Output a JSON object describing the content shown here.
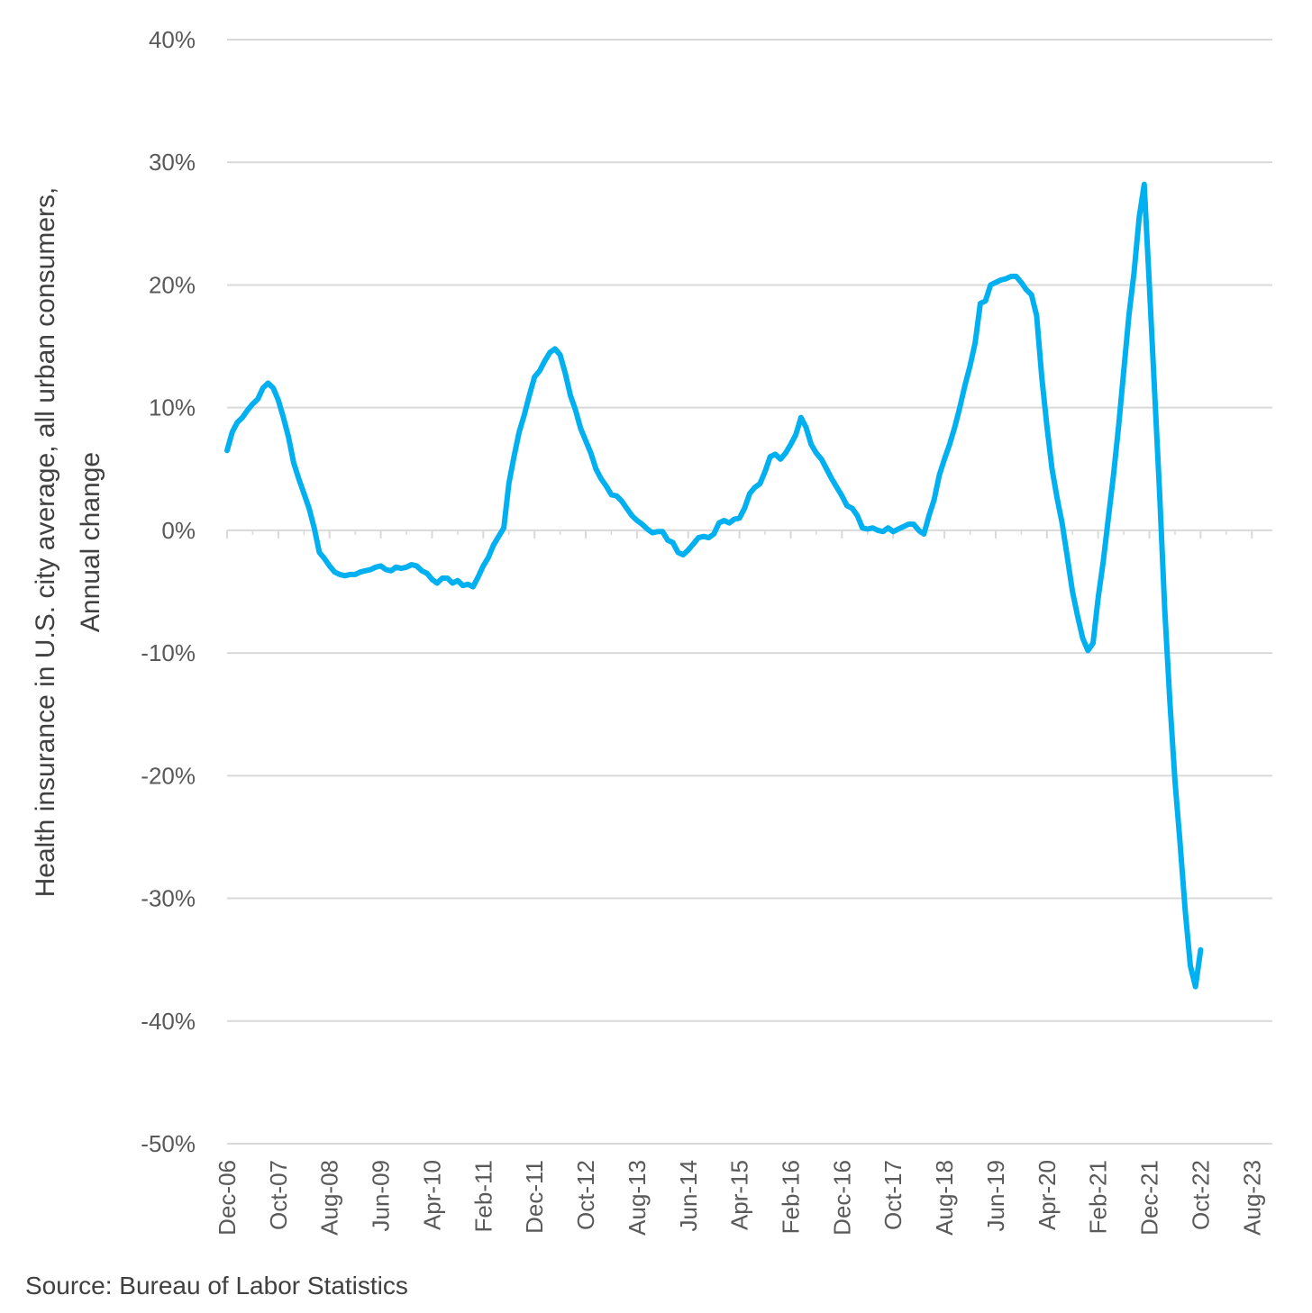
{
  "chart_data": {
    "type": "line",
    "title": "",
    "ylabel_lines": [
      "Health insurance in U.S. city average, all urban consumers,",
      "Annual change"
    ],
    "xlabel": "",
    "source": "Source: Bureau of Labor Statistics",
    "ylim": [
      -50,
      40
    ],
    "yticks": [
      40,
      30,
      20,
      10,
      0,
      -10,
      -20,
      -30,
      -40,
      -50
    ],
    "ytick_labels": [
      "40%",
      "30%",
      "20%",
      "10%",
      "0%",
      "-10%",
      "-20%",
      "-30%",
      "-40%",
      "-50%"
    ],
    "xtick_labels": [
      "Dec-06",
      "Oct-07",
      "Aug-08",
      "Jun-09",
      "Apr-10",
      "Feb-11",
      "Dec-11",
      "Oct-12",
      "Aug-13",
      "Jun-14",
      "Apr-15",
      "Feb-16",
      "Dec-16",
      "Oct-17",
      "Aug-18",
      "Jun-19",
      "Apr-20",
      "Feb-21",
      "Dec-21",
      "Oct-22",
      "Aug-23"
    ],
    "x_range_months": [
      0,
      204
    ],
    "grid": true,
    "series": [
      {
        "name": "Health insurance annual change",
        "color": "#00B0F0",
        "points": [
          [
            0,
            6.5
          ],
          [
            1,
            8.0
          ],
          [
            2,
            8.8
          ],
          [
            3,
            9.2
          ],
          [
            4,
            9.8
          ],
          [
            5,
            10.3
          ],
          [
            6,
            10.7
          ],
          [
            7,
            11.6
          ],
          [
            8,
            12.0
          ],
          [
            9,
            11.6
          ],
          [
            10,
            10.6
          ],
          [
            11,
            9.2
          ],
          [
            12,
            7.6
          ],
          [
            13,
            5.5
          ],
          [
            14,
            4.2
          ],
          [
            15,
            3.0
          ],
          [
            16,
            1.8
          ],
          [
            17,
            0.2
          ],
          [
            18,
            -1.8
          ],
          [
            19,
            -2.3
          ],
          [
            20,
            -2.9
          ],
          [
            21,
            -3.4
          ],
          [
            22,
            -3.6
          ],
          [
            23,
            -3.7
          ],
          [
            24,
            -3.6
          ],
          [
            25,
            -3.6
          ],
          [
            26,
            -3.4
          ],
          [
            27,
            -3.3
          ],
          [
            28,
            -3.2
          ],
          [
            29,
            -3.0
          ],
          [
            30,
            -2.9
          ],
          [
            31,
            -3.2
          ],
          [
            32,
            -3.3
          ],
          [
            33,
            -3.0
          ],
          [
            34,
            -3.1
          ],
          [
            35,
            -3.0
          ],
          [
            36,
            -2.8
          ],
          [
            37,
            -2.9
          ],
          [
            38,
            -3.3
          ],
          [
            39,
            -3.5
          ],
          [
            40,
            -4.0
          ],
          [
            41,
            -4.3
          ],
          [
            42,
            -3.9
          ],
          [
            43,
            -3.9
          ],
          [
            44,
            -4.3
          ],
          [
            45,
            -4.1
          ],
          [
            46,
            -4.5
          ],
          [
            47,
            -4.4
          ],
          [
            48,
            -4.6
          ],
          [
            49,
            -3.8
          ],
          [
            50,
            -2.9
          ],
          [
            51,
            -2.2
          ],
          [
            52,
            -1.2
          ],
          [
            53,
            -0.5
          ],
          [
            54,
            0.2
          ],
          [
            55,
            3.8
          ],
          [
            56,
            6.0
          ],
          [
            57,
            8.0
          ],
          [
            58,
            9.4
          ],
          [
            59,
            11.0
          ],
          [
            60,
            12.5
          ],
          [
            61,
            13.0
          ],
          [
            62,
            13.8
          ],
          [
            63,
            14.5
          ],
          [
            64,
            14.8
          ],
          [
            65,
            14.3
          ],
          [
            66,
            12.8
          ],
          [
            67,
            11.0
          ],
          [
            68,
            9.8
          ],
          [
            69,
            8.3
          ],
          [
            70,
            7.3
          ],
          [
            71,
            6.3
          ],
          [
            72,
            5.0
          ],
          [
            73,
            4.2
          ],
          [
            74,
            3.6
          ],
          [
            75,
            2.9
          ],
          [
            76,
            2.8
          ],
          [
            77,
            2.4
          ],
          [
            78,
            1.8
          ],
          [
            79,
            1.2
          ],
          [
            80,
            0.8
          ],
          [
            81,
            0.5
          ],
          [
            82,
            0.1
          ],
          [
            83,
            -0.2
          ],
          [
            84,
            -0.1
          ],
          [
            85,
            -0.1
          ],
          [
            86,
            -0.8
          ],
          [
            87,
            -1.0
          ],
          [
            88,
            -1.8
          ],
          [
            89,
            -2.0
          ],
          [
            90,
            -1.6
          ],
          [
            91,
            -1.1
          ],
          [
            92,
            -0.6
          ],
          [
            93,
            -0.5
          ],
          [
            94,
            -0.6
          ],
          [
            95,
            -0.3
          ],
          [
            96,
            0.6
          ],
          [
            97,
            0.8
          ],
          [
            98,
            0.6
          ],
          [
            99,
            0.9
          ],
          [
            100,
            1.0
          ],
          [
            101,
            1.8
          ],
          [
            102,
            3.0
          ],
          [
            103,
            3.5
          ],
          [
            104,
            3.8
          ],
          [
            105,
            4.8
          ],
          [
            106,
            6.0
          ],
          [
            107,
            6.2
          ],
          [
            108,
            5.8
          ],
          [
            109,
            6.3
          ],
          [
            110,
            7.0
          ],
          [
            111,
            7.8
          ],
          [
            112,
            9.2
          ],
          [
            113,
            8.4
          ],
          [
            114,
            7.0
          ],
          [
            115,
            6.3
          ],
          [
            116,
            5.8
          ],
          [
            117,
            5.0
          ],
          [
            118,
            4.2
          ],
          [
            119,
            3.5
          ],
          [
            120,
            2.8
          ],
          [
            121,
            2.0
          ],
          [
            122,
            1.8
          ],
          [
            123,
            1.2
          ],
          [
            124,
            0.2
          ],
          [
            125,
            0.1
          ],
          [
            126,
            0.2
          ],
          [
            127,
            0.0
          ],
          [
            128,
            -0.1
          ],
          [
            129,
            0.2
          ],
          [
            130,
            -0.1
          ],
          [
            131,
            0.1
          ],
          [
            132,
            0.3
          ],
          [
            133,
            0.5
          ],
          [
            134,
            0.5
          ],
          [
            135,
            0.0
          ],
          [
            136,
            -0.3
          ],
          [
            137,
            1.2
          ],
          [
            138,
            2.5
          ],
          [
            139,
            4.5
          ],
          [
            140,
            5.8
          ],
          [
            141,
            7.0
          ],
          [
            142,
            8.4
          ],
          [
            143,
            10.0
          ],
          [
            144,
            11.8
          ],
          [
            145,
            13.4
          ],
          [
            146,
            15.3
          ],
          [
            147,
            18.5
          ],
          [
            148,
            18.7
          ],
          [
            149,
            20.0
          ],
          [
            150,
            20.2
          ],
          [
            151,
            20.4
          ],
          [
            152,
            20.5
          ],
          [
            153,
            20.7
          ],
          [
            154,
            20.7
          ],
          [
            155,
            20.2
          ],
          [
            156,
            19.6
          ],
          [
            157,
            19.2
          ],
          [
            158,
            17.5
          ],
          [
            159,
            12.5
          ],
          [
            160,
            8.5
          ],
          [
            161,
            5.0
          ],
          [
            162,
            2.6
          ],
          [
            163,
            0.5
          ],
          [
            164,
            -2.2
          ],
          [
            165,
            -5.0
          ],
          [
            166,
            -7.0
          ],
          [
            167,
            -8.8
          ],
          [
            168,
            -9.8
          ],
          [
            169,
            -9.2
          ],
          [
            170,
            -5.5
          ],
          [
            171,
            -2.5
          ],
          [
            172,
            1.0
          ],
          [
            173,
            4.5
          ],
          [
            174,
            8.5
          ],
          [
            175,
            13.0
          ],
          [
            176,
            17.5
          ],
          [
            177,
            21.0
          ],
          [
            178,
            25.5
          ],
          [
            179,
            28.2
          ],
          [
            180,
            20.0
          ],
          [
            181,
            11.5
          ],
          [
            182,
            3.0
          ],
          [
            183,
            -6.5
          ],
          [
            184,
            -14.0
          ],
          [
            185,
            -20.5
          ],
          [
            186,
            -25.5
          ],
          [
            187,
            -31.0
          ],
          [
            188,
            -35.5
          ],
          [
            189,
            -37.2
          ],
          [
            190,
            -34.2
          ]
        ]
      }
    ]
  }
}
